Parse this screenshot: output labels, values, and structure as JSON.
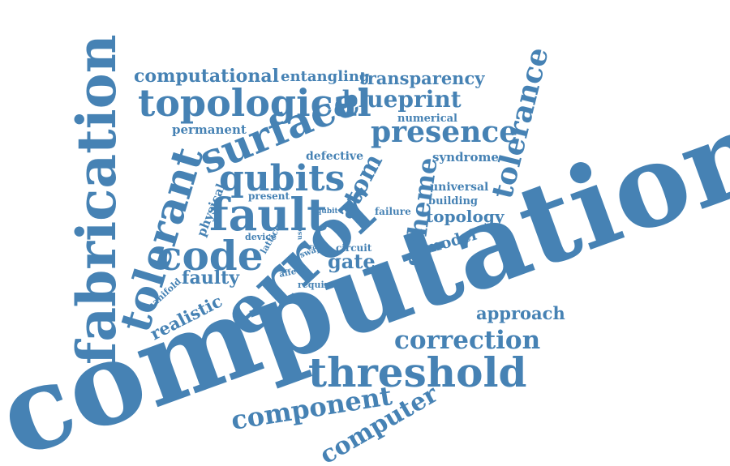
{
  "word_color": "#4682b4",
  "words": [
    {
      "id": "computation",
      "text": "computation"
    },
    {
      "id": "fabrication",
      "text": "fabrication"
    },
    {
      "id": "error",
      "text": "error"
    },
    {
      "id": "threshold",
      "text": "threshold"
    },
    {
      "id": "fault",
      "text": "fault"
    },
    {
      "id": "surface",
      "text": "surface"
    },
    {
      "id": "topological",
      "text": "topological"
    },
    {
      "id": "tolerant",
      "text": "tolerant"
    },
    {
      "id": "code",
      "text": "code"
    },
    {
      "id": "qubits",
      "text": "qubits"
    },
    {
      "id": "presence",
      "text": "presence"
    },
    {
      "id": "tolerance",
      "text": "tolerance"
    },
    {
      "id": "scheme",
      "text": "scheme"
    },
    {
      "id": "correction",
      "text": "correction"
    },
    {
      "id": "component",
      "text": "component"
    },
    {
      "id": "computer",
      "text": "computer"
    },
    {
      "id": "atom",
      "text": "atom"
    },
    {
      "id": "blueprint",
      "text": "blueprint"
    },
    {
      "id": "computational",
      "text": "computational"
    },
    {
      "id": "entangling",
      "text": "entangling"
    },
    {
      "id": "transparency",
      "text": "transparency"
    },
    {
      "id": "approach",
      "text": "approach"
    },
    {
      "id": "gate",
      "text": "gate"
    },
    {
      "id": "topology",
      "text": "topology"
    },
    {
      "id": "faulty",
      "text": "faulty"
    },
    {
      "id": "realistic",
      "text": "realistic"
    },
    {
      "id": "model",
      "text": "model"
    },
    {
      "id": "permanent",
      "text": "permanent"
    },
    {
      "id": "physical",
      "text": "physical"
    },
    {
      "id": "defective",
      "text": "defective"
    },
    {
      "id": "syndrome",
      "text": "syndrome"
    },
    {
      "id": "universal",
      "text": "universal"
    },
    {
      "id": "building",
      "text": "building"
    },
    {
      "id": "numerical",
      "text": "numerical"
    },
    {
      "id": "failure",
      "text": "failure"
    },
    {
      "id": "present",
      "text": "present"
    },
    {
      "id": "lattice",
      "text": "lattice"
    },
    {
      "id": "circuit",
      "text": "circuit"
    },
    {
      "id": "manifold",
      "text": "manifold"
    },
    {
      "id": "device",
      "text": "device"
    },
    {
      "id": "swap",
      "text": "swap"
    },
    {
      "id": "affect",
      "text": "affect"
    },
    {
      "id": "require",
      "text": "require"
    },
    {
      "id": "qubit",
      "text": "qubit"
    },
    {
      "id": "rate",
      "text": "rate"
    },
    {
      "id": "use",
      "text": "use"
    }
  ]
}
